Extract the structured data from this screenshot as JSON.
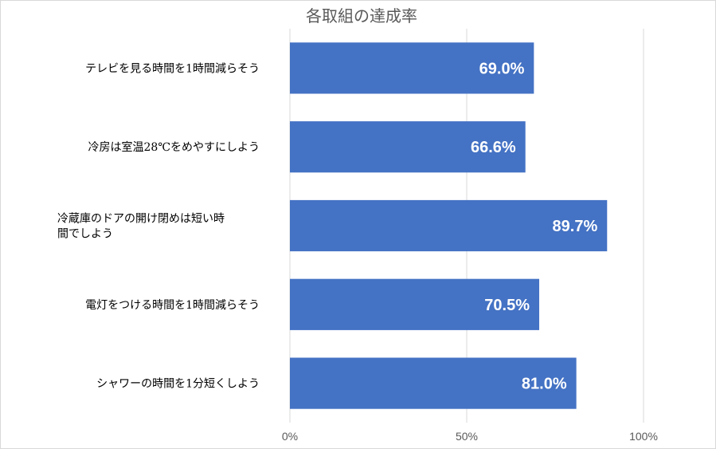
{
  "chart_data": {
    "type": "bar",
    "orientation": "horizontal",
    "title": "各取組の達成率",
    "categories": [
      "テレビを見る時間を1時間減らそう",
      "冷房は室温28℃をめやすにしよう",
      "冷蔵庫のドアの開け閉めは短い時間でしよう",
      "電灯をつける時間を1時間減らそう",
      "シャワーの時間を1分短くしよう"
    ],
    "category_lines": [
      [
        "テレビを見る時間を1時間減らそう"
      ],
      [
        "冷房は室温28℃をめやすにしよう"
      ],
      [
        "冷蔵庫のドアの開け閉めは短い時",
        "間でしよう"
      ],
      [
        "電灯をつける時間を1時間減らそう"
      ],
      [
        "シャワーの時間を1分短くしよう"
      ]
    ],
    "values": [
      69.0,
      66.6,
      89.7,
      70.5,
      81.0
    ],
    "data_labels": [
      "69.0%",
      "66.6%",
      "89.7%",
      "70.5%",
      "81.0%"
    ],
    "xlim": [
      0,
      100
    ],
    "x_ticks": [
      0,
      50,
      100
    ],
    "x_tick_labels": [
      "0%",
      "50%",
      "100%"
    ],
    "grid": true,
    "legend": "none",
    "colors": {
      "bar": "#4472c4",
      "grid": "#d9d9d9",
      "data_label": "#ffffff",
      "title": "#595959"
    }
  }
}
